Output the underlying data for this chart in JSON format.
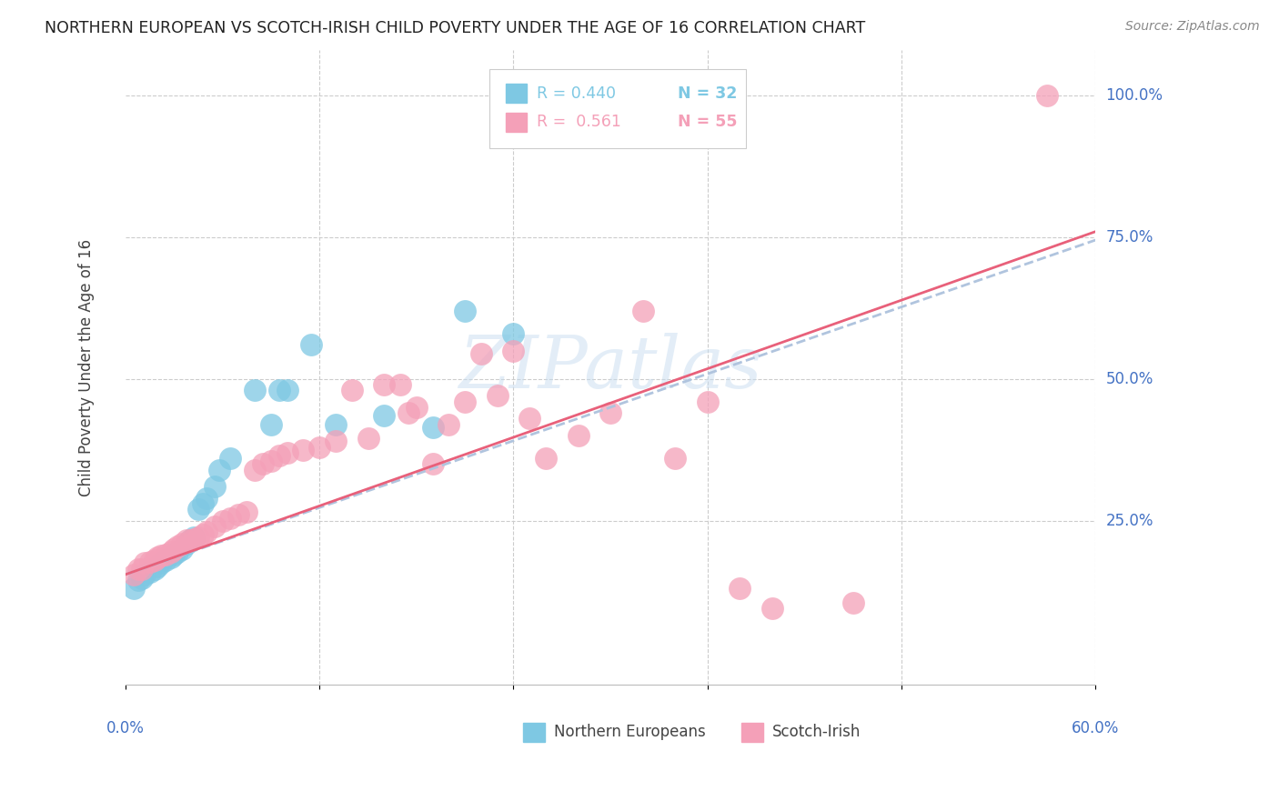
{
  "title": "NORTHERN EUROPEAN VS SCOTCH-IRISH CHILD POVERTY UNDER THE AGE OF 16 CORRELATION CHART",
  "source": "Source: ZipAtlas.com",
  "ylabel": "Child Poverty Under the Age of 16",
  "blue_color": "#7ec8e3",
  "pink_color": "#f4a0b8",
  "line_blue_color": "#b0c4de",
  "line_pink_color": "#e8607a",
  "axis_label_color": "#4472c4",
  "watermark_text": "ZIPatlas",
  "legend_r1": "R = 0.440",
  "legend_n1": "N = 32",
  "legend_r2": "R =  0.561",
  "legend_n2": "N = 55",
  "xlim": [
    0.0,
    0.6
  ],
  "ylim": [
    -0.04,
    1.08
  ],
  "ne_x": [
    0.005,
    0.008,
    0.01,
    0.012,
    0.015,
    0.018,
    0.02,
    0.022,
    0.025,
    0.028,
    0.03,
    0.032,
    0.035,
    0.038,
    0.04,
    0.042,
    0.045,
    0.048,
    0.05,
    0.055,
    0.058,
    0.065,
    0.08,
    0.09,
    0.095,
    0.1,
    0.115,
    0.13,
    0.16,
    0.19,
    0.21,
    0.24
  ],
  "ne_y": [
    0.13,
    0.145,
    0.148,
    0.155,
    0.16,
    0.165,
    0.17,
    0.175,
    0.18,
    0.185,
    0.19,
    0.195,
    0.2,
    0.21,
    0.215,
    0.22,
    0.27,
    0.28,
    0.29,
    0.31,
    0.34,
    0.36,
    0.48,
    0.42,
    0.48,
    0.48,
    0.56,
    0.42,
    0.435,
    0.415,
    0.62,
    0.58
  ],
  "si_x": [
    0.005,
    0.008,
    0.01,
    0.012,
    0.015,
    0.018,
    0.02,
    0.022,
    0.025,
    0.028,
    0.03,
    0.032,
    0.035,
    0.038,
    0.04,
    0.042,
    0.045,
    0.048,
    0.05,
    0.055,
    0.06,
    0.065,
    0.07,
    0.075,
    0.08,
    0.085,
    0.09,
    0.095,
    0.1,
    0.11,
    0.12,
    0.13,
    0.14,
    0.15,
    0.16,
    0.17,
    0.175,
    0.18,
    0.19,
    0.2,
    0.21,
    0.22,
    0.23,
    0.24,
    0.25,
    0.26,
    0.28,
    0.3,
    0.32,
    0.34,
    0.36,
    0.38,
    0.4,
    0.45,
    0.57
  ],
  "si_y": [
    0.155,
    0.165,
    0.165,
    0.175,
    0.178,
    0.18,
    0.185,
    0.188,
    0.19,
    0.195,
    0.2,
    0.205,
    0.21,
    0.215,
    0.215,
    0.218,
    0.22,
    0.225,
    0.23,
    0.24,
    0.25,
    0.255,
    0.26,
    0.265,
    0.34,
    0.35,
    0.355,
    0.365,
    0.37,
    0.375,
    0.38,
    0.39,
    0.48,
    0.395,
    0.49,
    0.49,
    0.44,
    0.45,
    0.35,
    0.42,
    0.46,
    0.545,
    0.47,
    0.55,
    0.43,
    0.36,
    0.4,
    0.44,
    0.62,
    0.36,
    0.46,
    0.13,
    0.095,
    0.105,
    1.0
  ]
}
